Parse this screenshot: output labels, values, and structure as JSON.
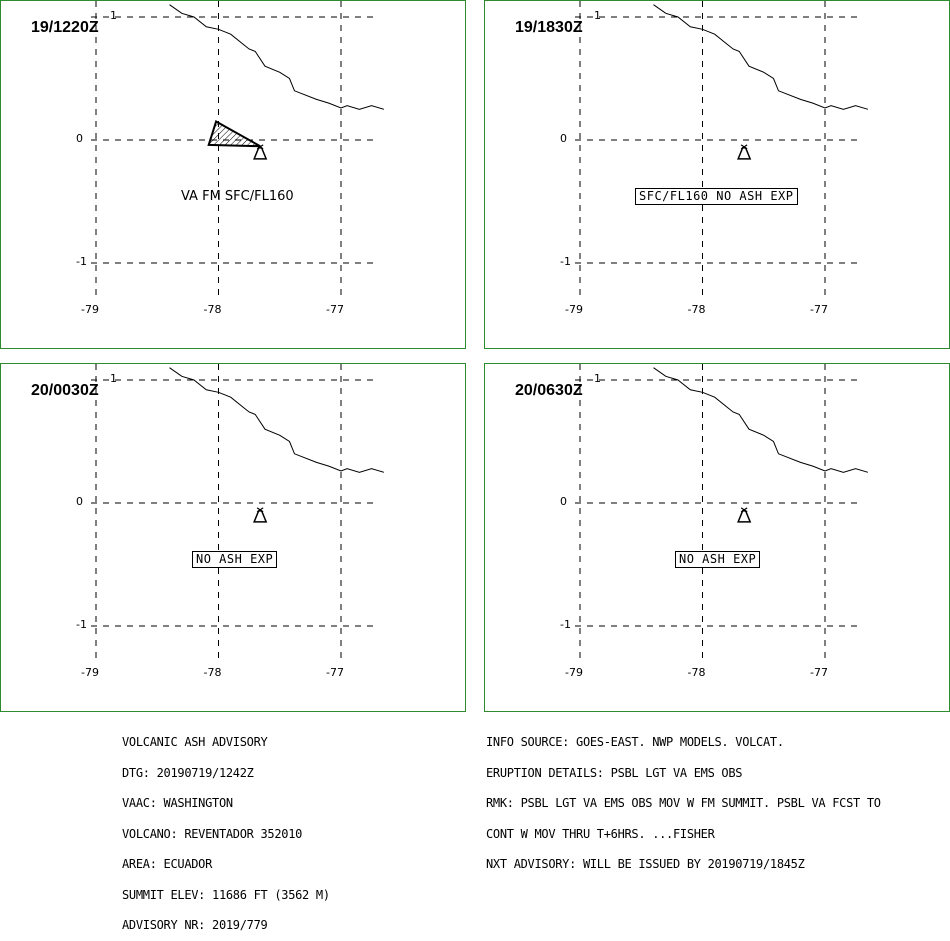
{
  "panels": [
    {
      "time": "19/1220Z",
      "label": "VA FM SFC/FL160",
      "label_boxed": false,
      "ash_polygon": [
        [
          -78.02,
          0.15
        ],
        [
          -77.66,
          -0.05
        ],
        [
          -78.08,
          -0.04
        ]
      ]
    },
    {
      "time": "19/1830Z",
      "label": "SFC/FL160 NO ASH EXP",
      "label_boxed": true,
      "ash_polygon": []
    },
    {
      "time": "20/0030Z",
      "label": "NO ASH EXP",
      "label_boxed": true,
      "ash_polygon": []
    },
    {
      "time": "20/0630Z",
      "label": "NO ASH EXP",
      "label_boxed": true,
      "ash_polygon": []
    }
  ],
  "map": {
    "lon_ticks": [
      "-79",
      "-78",
      "-77"
    ],
    "lat_ticks": [
      "1",
      "0",
      "-1"
    ],
    "lon_range": [
      -79.0,
      -76.6
    ],
    "lat_range": [
      1.0,
      -1.0
    ],
    "volcano": {
      "lon": -77.66,
      "lat": -0.08,
      "symbol": "volcano-triangle"
    },
    "coastline": [
      [
        -78.4,
        1.1
      ],
      [
        -78.3,
        1.03
      ],
      [
        -78.2,
        1.0
      ],
      [
        -78.1,
        0.92
      ],
      [
        -78.0,
        0.9
      ],
      [
        -77.9,
        0.86
      ],
      [
        -77.8,
        0.78
      ],
      [
        -77.75,
        0.74
      ],
      [
        -77.7,
        0.72
      ],
      [
        -77.62,
        0.6
      ],
      [
        -77.5,
        0.55
      ],
      [
        -77.42,
        0.5
      ],
      [
        -77.38,
        0.4
      ],
      [
        -77.2,
        0.33
      ],
      [
        -77.1,
        0.3
      ],
      [
        -77.0,
        0.26
      ],
      [
        -76.95,
        0.28
      ],
      [
        -76.85,
        0.25
      ],
      [
        -76.75,
        0.28
      ],
      [
        -76.65,
        0.25
      ]
    ],
    "border_color": "#2e8b2e"
  },
  "advisory_left": [
    "VOLCANIC ASH ADVISORY",
    "DTG: 20190719/1242Z",
    "VAAC: WASHINGTON",
    "VOLCANO: REVENTADOR 352010",
    "AREA: ECUADOR",
    "SUMMIT ELEV: 11686 FT (3562 M)",
    "ADVISORY NR: 2019/779"
  ],
  "advisory_right": [
    "INFO SOURCE: GOES-EAST. NWP MODELS. VOLCAT.",
    "ERUPTION DETAILS: PSBL LGT VA EMS OBS",
    "RMK: PSBL LGT VA EMS OBS MOV W FM SUMMIT. PSBL VA FCST TO",
    "CONT W MOV THRU T+6HRS. ...FISHER",
    "NXT ADVISORY: WILL BE ISSUED BY 20190719/1845Z"
  ]
}
